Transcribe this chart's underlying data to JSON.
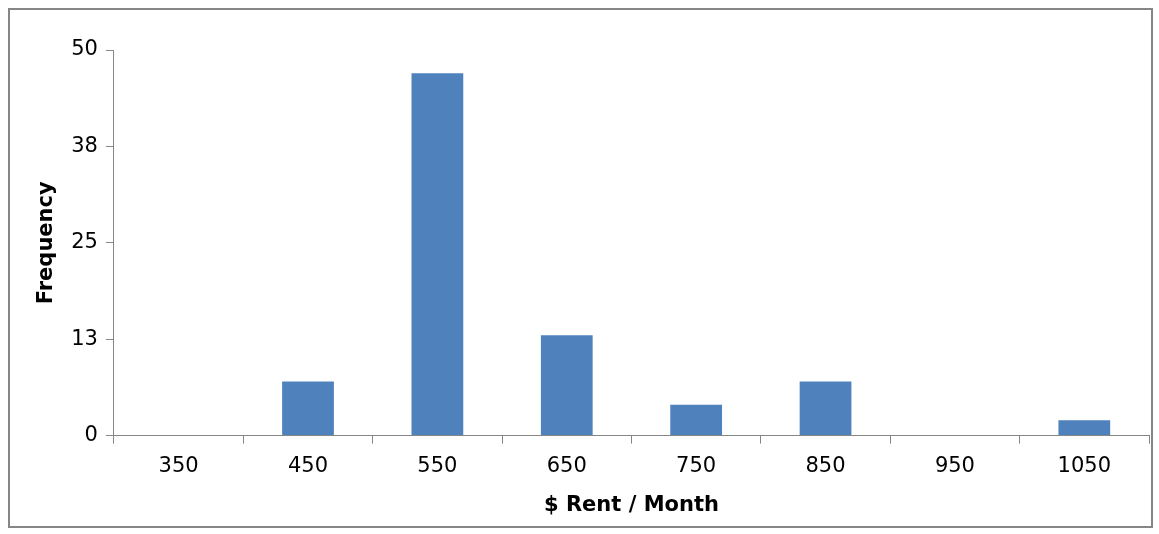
{
  "chart_data": {
    "type": "bar",
    "xlabel": "$ Rent / Month",
    "ylabel": "Frequency",
    "categories": [
      "350",
      "450",
      "550",
      "650",
      "750",
      "850",
      "950",
      "1050"
    ],
    "values": [
      0,
      7,
      47,
      13,
      4,
      7,
      0,
      2
    ],
    "color": "#4f81bd",
    "ylim": [
      0,
      50
    ],
    "yticks": [
      0,
      {
        "value": 12.5,
        "label": "13"
      },
      25,
      {
        "value": 37.5,
        "label": "38"
      },
      50
    ],
    "grid": false,
    "legend": false
  }
}
